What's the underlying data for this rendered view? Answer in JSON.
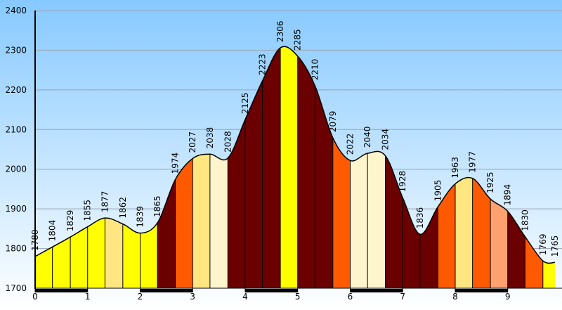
{
  "chart_data": {
    "type": "area",
    "title": "",
    "xlabel": "",
    "ylabel": "",
    "xlim": [
      0,
      9.9
    ],
    "ylim": [
      1700,
      2400
    ],
    "x_ticks": [
      "0",
      "1",
      "2",
      "3",
      "4",
      "5",
      "6",
      "7",
      "8",
      "9"
    ],
    "y_ticks": [
      "1700",
      "1800",
      "1900",
      "2000",
      "2100",
      "2200",
      "2300",
      "2400"
    ],
    "grid": true,
    "background_colors": [
      "#86c9ff",
      "#ffffff"
    ],
    "outline_color": "#000000",
    "points": [
      {
        "x": 0.0,
        "y": 1780
      },
      {
        "x": 0.33,
        "y": 1804
      },
      {
        "x": 0.67,
        "y": 1829
      },
      {
        "x": 1.0,
        "y": 1855
      },
      {
        "x": 1.33,
        "y": 1877
      },
      {
        "x": 1.67,
        "y": 1862
      },
      {
        "x": 2.0,
        "y": 1839
      },
      {
        "x": 2.33,
        "y": 1865
      },
      {
        "x": 2.67,
        "y": 1974
      },
      {
        "x": 3.0,
        "y": 2027
      },
      {
        "x": 3.33,
        "y": 2038
      },
      {
        "x": 3.67,
        "y": 2028
      },
      {
        "x": 4.0,
        "y": 2125
      },
      {
        "x": 4.33,
        "y": 2223
      },
      {
        "x": 4.67,
        "y": 2306
      },
      {
        "x": 5.0,
        "y": 2285
      },
      {
        "x": 5.33,
        "y": 2210
      },
      {
        "x": 5.67,
        "y": 2079
      },
      {
        "x": 6.0,
        "y": 2022
      },
      {
        "x": 6.33,
        "y": 2040
      },
      {
        "x": 6.67,
        "y": 2034
      },
      {
        "x": 7.0,
        "y": 1928
      },
      {
        "x": 7.33,
        "y": 1836
      },
      {
        "x": 7.67,
        "y": 1905
      },
      {
        "x": 8.0,
        "y": 1963
      },
      {
        "x": 8.33,
        "y": 1977
      },
      {
        "x": 8.67,
        "y": 1925
      },
      {
        "x": 9.0,
        "y": 1894
      },
      {
        "x": 9.33,
        "y": 1830
      },
      {
        "x": 9.67,
        "y": 1769
      },
      {
        "x": 9.9,
        "y": 1765
      }
    ],
    "segment_colors": [
      "#ffff00",
      "#ffff00",
      "#ffff00",
      "#ffff00",
      "#ffe680",
      "#ffff00",
      "#ffff00",
      "#6b0000",
      "#ff5a00",
      "#ffe680",
      "#fff5cc",
      "#6b0000",
      "#6b0000",
      "#6b0000",
      "#ffff00",
      "#6b0000",
      "#6b0000",
      "#ff5a00",
      "#fff5cc",
      "#fff5cc",
      "#6b0000",
      "#6b0000",
      "#6b0000",
      "#ff5a00",
      "#ffe680",
      "#ff5a00",
      "#ffa070",
      "#6b0000",
      "#ff5a00",
      "#ffff00"
    ],
    "point_labels": [
      "1780",
      "1804",
      "1829",
      "1855",
      "1877",
      "1862",
      "1839",
      "1865",
      "1974",
      "2027",
      "2038",
      "2028",
      "2125",
      "2223",
      "2306",
      "2285",
      "2210",
      "2079",
      "2022",
      "2040",
      "2034",
      "1928",
      "1836",
      "1905",
      "1963",
      "1977",
      "1925",
      "1894",
      "1830",
      "1769",
      "1765"
    ],
    "x_bands": [
      {
        "from": 0,
        "to": 1,
        "color": "#000000"
      },
      {
        "from": 2,
        "to": 3,
        "color": "#000000"
      },
      {
        "from": 4,
        "to": 5,
        "color": "#000000"
      },
      {
        "from": 6,
        "to": 7,
        "color": "#000000"
      },
      {
        "from": 8,
        "to": 9,
        "color": "#000000"
      }
    ]
  }
}
